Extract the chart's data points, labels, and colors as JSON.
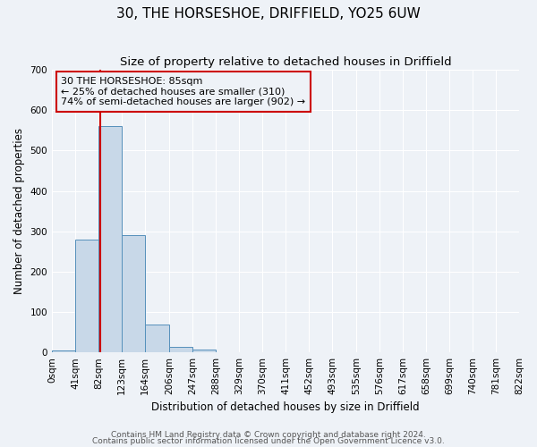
{
  "title1": "30, THE HORSESHOE, DRIFFIELD, YO25 6UW",
  "title2": "Size of property relative to detached houses in Driffield",
  "xlabel": "Distribution of detached houses by size in Driffield",
  "ylabel": "Number of detached properties",
  "bar_values": [
    5,
    280,
    560,
    290,
    68,
    13,
    8,
    0,
    0,
    0,
    0,
    0,
    0,
    0,
    0,
    0,
    0,
    0,
    0,
    0
  ],
  "bin_edges": [
    0,
    41,
    82,
    123,
    164,
    206,
    247,
    288,
    329,
    370,
    411,
    452,
    493,
    535,
    576,
    617,
    658,
    699,
    740,
    781,
    822
  ],
  "tick_labels": [
    "0sqm",
    "41sqm",
    "82sqm",
    "123sqm",
    "164sqm",
    "206sqm",
    "247sqm",
    "288sqm",
    "329sqm",
    "370sqm",
    "411sqm",
    "452sqm",
    "493sqm",
    "535sqm",
    "576sqm",
    "617sqm",
    "658sqm",
    "699sqm",
    "740sqm",
    "781sqm",
    "822sqm"
  ],
  "bar_color": "#c8d8e8",
  "bar_edge_color": "#5590bb",
  "ylim": [
    0,
    700
  ],
  "yticks": [
    0,
    100,
    200,
    300,
    400,
    500,
    600,
    700
  ],
  "vline_x": 85,
  "vline_color": "#cc0000",
  "annotation_line1": "30 THE HORSESHOE: 85sqm",
  "annotation_line2": "← 25% of detached houses are smaller (310)",
  "annotation_line3": "74% of semi-detached houses are larger (902) →",
  "annotation_box_color": "#cc0000",
  "footer1": "Contains HM Land Registry data © Crown copyright and database right 2024.",
  "footer2": "Contains public sector information licensed under the Open Government Licence v3.0.",
  "background_color": "#eef2f7",
  "grid_color": "#ffffff",
  "title_fontsize": 11,
  "subtitle_fontsize": 9.5,
  "axis_label_fontsize": 8.5,
  "tick_fontsize": 7.5,
  "footer_fontsize": 6.5
}
